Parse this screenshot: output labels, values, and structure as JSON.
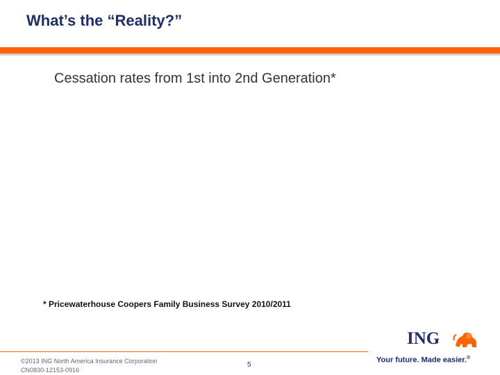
{
  "slide": {
    "title": "What’s the “Reality?”",
    "subtitle": "Cessation rates from 1st into 2nd Generation*",
    "footnote": "* Pricewaterhouse Coopers Family Business Survey 2010/2011"
  },
  "footer": {
    "copyright_line1": "©2013 ING North America Insurance Corporation",
    "copyright_line2": "CN0830-12153-0916",
    "page_number": "5",
    "logo_text": "ING",
    "logo_icon": "lion-icon",
    "tagline": "Your future. Made easier.",
    "tagline_mark": "®"
  },
  "colors": {
    "title": "#1f2d6b",
    "accent": "#ff6200",
    "rule_grey": "#cfcfcf"
  }
}
